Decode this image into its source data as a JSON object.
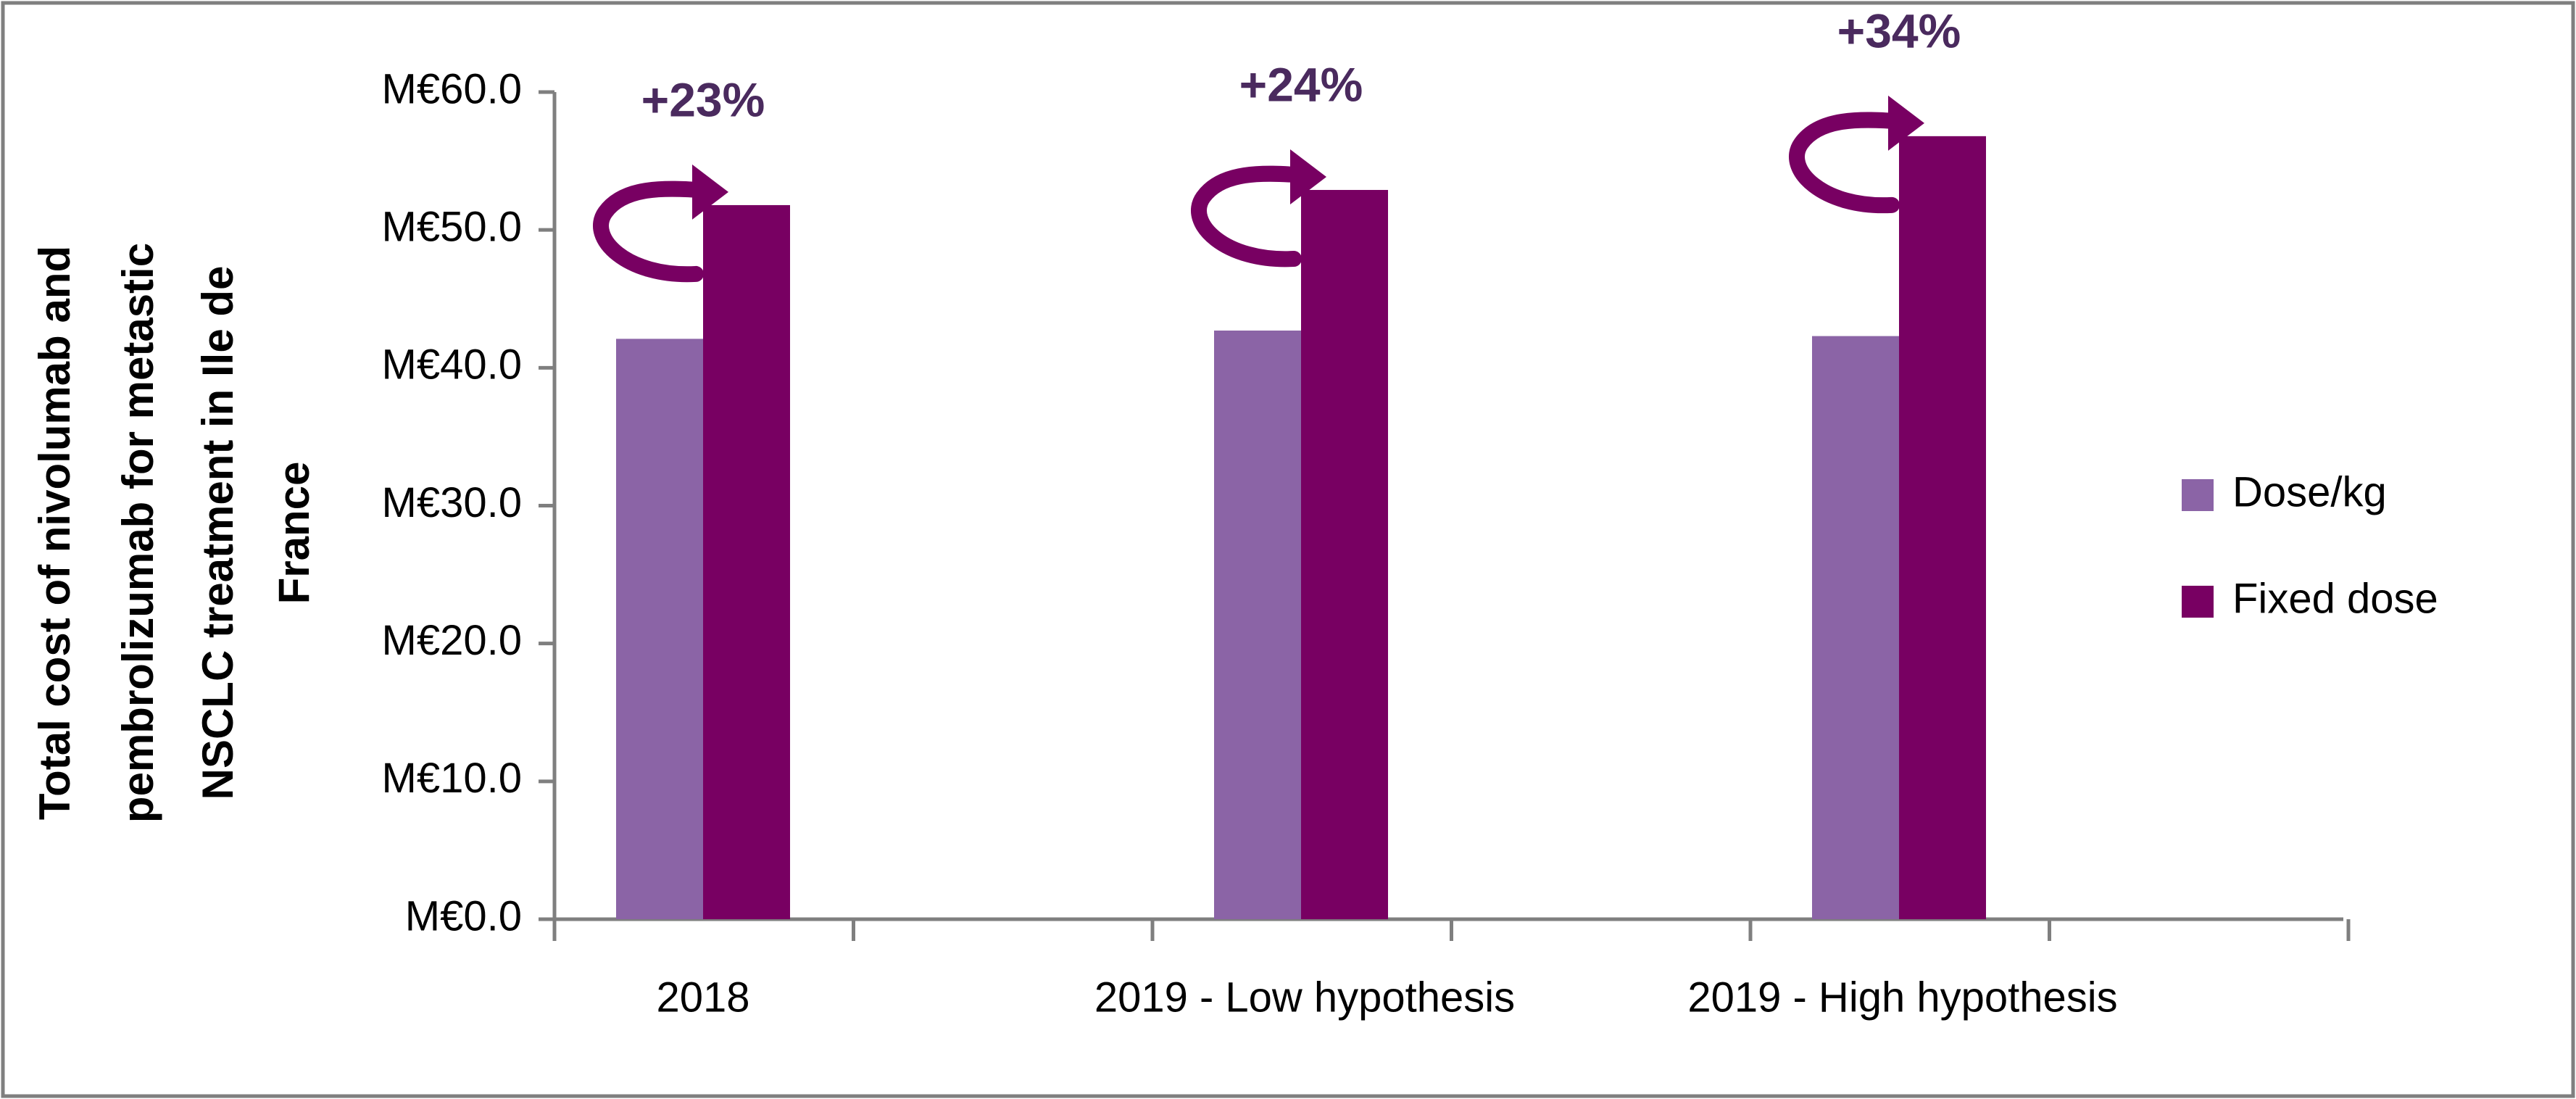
{
  "chart_data": {
    "type": "bar",
    "title": "",
    "xlabel": "",
    "ylabel": "Total cost of nivolumab and pembrolizumab for metastic NSCLC  treatment in Ile de France",
    "ylabel_lines": [
      "Total cost of nivolumab and",
      "pembrolizumab for metastic",
      "NSCLC  treatment in Ile de",
      "France"
    ],
    "categories": [
      "2018",
      "2019 - Low hypothesis",
      "2019 - High hypothesis"
    ],
    "series": [
      {
        "name": "Dose/kg",
        "color": "#8B64A6",
        "values": [
          42.1,
          42.7,
          42.3
        ]
      },
      {
        "name": "Fixed dose",
        "color": "#780062",
        "values": [
          51.8,
          52.9,
          56.8
        ]
      }
    ],
    "annotations": [
      "+23%",
      "+24%",
      "+34%"
    ],
    "ylim": [
      0,
      60
    ],
    "yticks": [
      0,
      10,
      20,
      30,
      40,
      50,
      60
    ],
    "ytick_labels": [
      "M€0.0",
      "M€10.0",
      "M€20.0",
      "M€30.0",
      "M€40.0",
      "M€50.0",
      "M€60.0"
    ],
    "grid": false,
    "legend_position": "right",
    "colors": {
      "axis": "#7f7f7f",
      "text": "#000000",
      "annotation": "#4A2A5E",
      "arrow": "#780062",
      "frame": "#7f7f7f"
    }
  }
}
